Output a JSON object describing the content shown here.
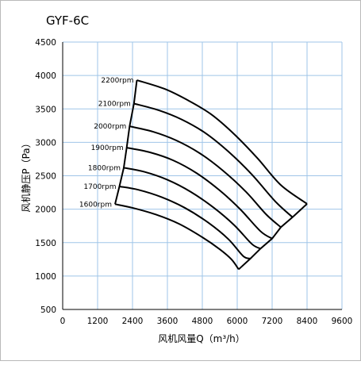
{
  "chart_data": {
    "type": "line",
    "title": "GYF-6C",
    "xlabel": "风机风量Q（m³/h）",
    "ylabel": "风机静压P（Pa）",
    "xlim": [
      0,
      9600
    ],
    "ylim": [
      500,
      4500
    ],
    "x_ticks": [
      "0",
      "1200",
      "2400",
      "3600",
      "4800",
      "6000",
      "7200",
      "8400",
      "9600"
    ],
    "y_ticks": [
      "500",
      "1000",
      "1500",
      "2000",
      "2500",
      "3000",
      "3500",
      "4000",
      "4500"
    ],
    "grid": true,
    "legend": "none",
    "colors": {
      "line": "#000000",
      "grid": "#9fc5e8",
      "axis": "#000000",
      "background": "#ffffff"
    },
    "series": [
      {
        "name": "1600rpm",
        "points": [
          [
            1800,
            2075
          ],
          [
            2400,
            2020
          ],
          [
            3200,
            1920
          ],
          [
            4000,
            1780
          ],
          [
            4800,
            1580
          ],
          [
            5400,
            1400
          ],
          [
            5800,
            1250
          ],
          [
            6050,
            1100
          ]
        ]
      },
      {
        "name": "1700rpm",
        "points": [
          [
            1950,
            2340
          ],
          [
            2600,
            2290
          ],
          [
            3400,
            2180
          ],
          [
            4200,
            2020
          ],
          [
            5000,
            1800
          ],
          [
            5700,
            1550
          ],
          [
            6200,
            1300
          ],
          [
            6450,
            1260
          ]
        ]
      },
      {
        "name": "1800rpm",
        "points": [
          [
            2100,
            2620
          ],
          [
            2800,
            2560
          ],
          [
            3600,
            2440
          ],
          [
            4400,
            2260
          ],
          [
            5200,
            2020
          ],
          [
            5900,
            1760
          ],
          [
            6500,
            1480
          ],
          [
            6800,
            1410
          ]
        ]
      },
      {
        "name": "1900rpm",
        "points": [
          [
            2200,
            2920
          ],
          [
            3000,
            2850
          ],
          [
            3800,
            2730
          ],
          [
            4600,
            2540
          ],
          [
            5400,
            2280
          ],
          [
            6100,
            2000
          ],
          [
            6800,
            1670
          ],
          [
            7200,
            1560
          ]
        ]
      },
      {
        "name": "2000rpm",
        "points": [
          [
            2300,
            3240
          ],
          [
            3100,
            3160
          ],
          [
            3900,
            3030
          ],
          [
            4700,
            2840
          ],
          [
            5500,
            2580
          ],
          [
            6300,
            2260
          ],
          [
            7000,
            1920
          ],
          [
            7500,
            1730
          ]
        ]
      },
      {
        "name": "2100rpm",
        "points": [
          [
            2450,
            3580
          ],
          [
            3300,
            3480
          ],
          [
            4100,
            3340
          ],
          [
            4900,
            3140
          ],
          [
            5700,
            2860
          ],
          [
            6500,
            2520
          ],
          [
            7300,
            2120
          ],
          [
            7900,
            1880
          ]
        ]
      },
      {
        "name": "2200rpm",
        "points": [
          [
            2550,
            3930
          ],
          [
            3500,
            3800
          ],
          [
            4300,
            3630
          ],
          [
            5100,
            3420
          ],
          [
            5900,
            3120
          ],
          [
            6700,
            2760
          ],
          [
            7500,
            2360
          ],
          [
            8400,
            2080
          ]
        ]
      }
    ]
  }
}
